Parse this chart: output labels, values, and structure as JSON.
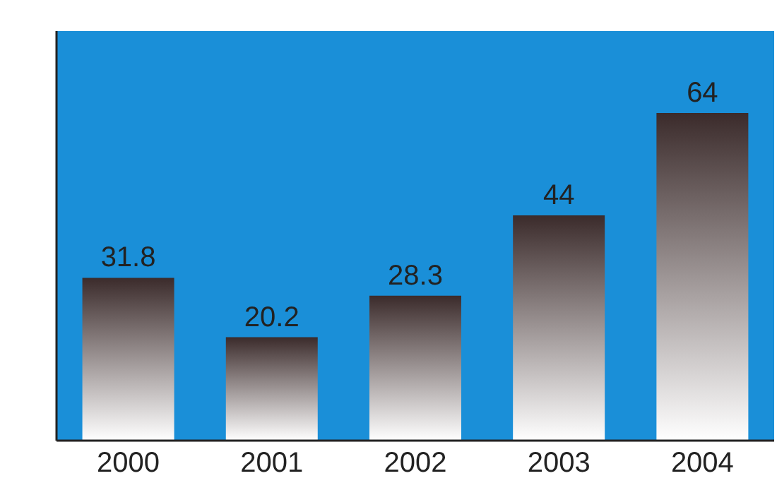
{
  "chart_data": {
    "type": "bar",
    "categories": [
      "2000",
      "2001",
      "2002",
      "2003",
      "2004"
    ],
    "values": [
      31.8,
      20.2,
      28.3,
      44,
      64
    ],
    "color": "#3b2b2b",
    "ylim": [
      0,
      80
    ],
    "data_labels": true,
    "tick_labels": "x",
    "grid": false,
    "legend": false
  }
}
